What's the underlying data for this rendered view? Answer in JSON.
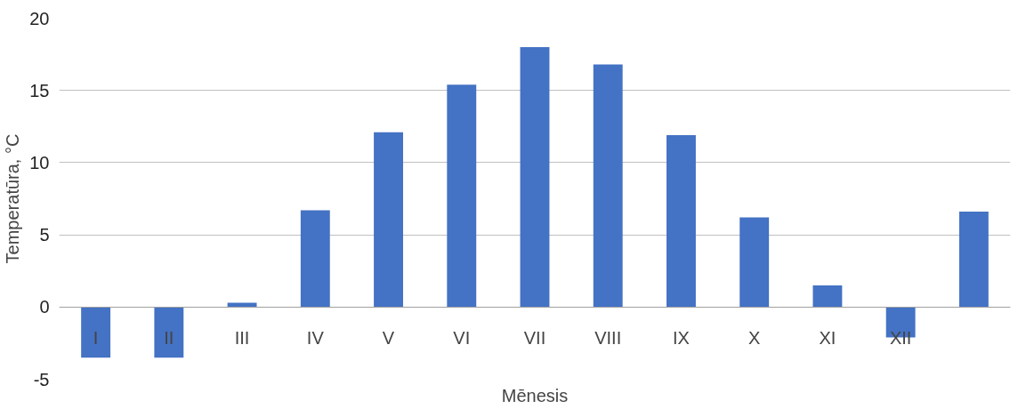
{
  "chart_data": {
    "type": "bar",
    "xlabel": "Mēnesis",
    "ylabel": "Temperatūra, °C",
    "categories": [
      "I",
      "II",
      "III",
      "IV",
      "V",
      "VI",
      "VII",
      "VIII",
      "IX",
      "X",
      "XI",
      "XII",
      null
    ],
    "values": [
      -3.5,
      -3.5,
      0.3,
      6.7,
      12.1,
      15.4,
      18,
      16.8,
      11.9,
      6.2,
      1.5,
      -2.1,
      6.6
    ],
    "color": "#4472c4",
    "ylim": [
      -5,
      20
    ],
    "yticks": [
      -5,
      0,
      5,
      10,
      15,
      20
    ],
    "grid": "y"
  }
}
